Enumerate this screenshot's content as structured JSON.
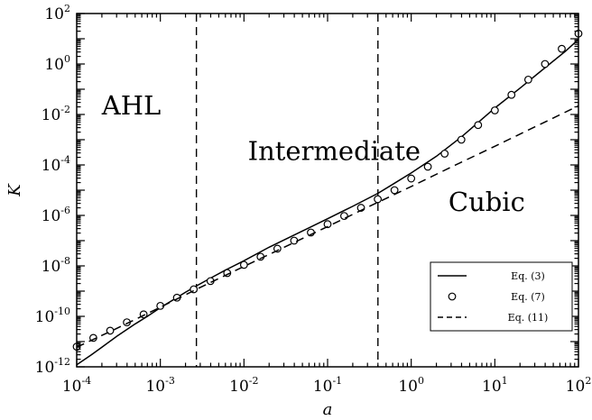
{
  "chart_data": {
    "type": "line",
    "xlabel": "a",
    "ylabel": "K",
    "x_scale": "log",
    "y_scale": "log",
    "xlim": [
      0.0001,
      100
    ],
    "ylim": [
      1e-12,
      100
    ],
    "x_ticks": [
      {
        "base": "10",
        "exp": "-4",
        "value": 0.0001
      },
      {
        "base": "10",
        "exp": "-3",
        "value": 0.001
      },
      {
        "base": "10",
        "exp": "-2",
        "value": 0.01
      },
      {
        "base": "10",
        "exp": "-1",
        "value": 0.1
      },
      {
        "base": "10",
        "exp": "0",
        "value": 1
      },
      {
        "base": "10",
        "exp": "1",
        "value": 10
      },
      {
        "base": "10",
        "exp": "2",
        "value": 100
      }
    ],
    "y_ticks": [
      {
        "base": "10",
        "exp": "-12",
        "value": 1e-12
      },
      {
        "base": "10",
        "exp": "-10",
        "value": 1e-10
      },
      {
        "base": "10",
        "exp": "-8",
        "value": 1e-08
      },
      {
        "base": "10",
        "exp": "-6",
        "value": 1e-06
      },
      {
        "base": "10",
        "exp": "-4",
        "value": 0.0001
      },
      {
        "base": "10",
        "exp": "-2",
        "value": 0.01
      },
      {
        "base": "10",
        "exp": "0",
        "value": 1
      },
      {
        "base": "10",
        "exp": "2",
        "value": 100
      }
    ],
    "grid": false,
    "legend_position": "bottom-right",
    "region_labels": [
      {
        "text": "AHL",
        "x": 0.00045,
        "y": 0.01
      },
      {
        "text": "Intermediate",
        "x": 0.12,
        "y": 0.00016
      },
      {
        "text": "Cubic",
        "x": 8,
        "y": 1.5e-06
      }
    ],
    "vertical_lines": [
      {
        "x": 0.0027,
        "style": "dashed"
      },
      {
        "x": 0.4,
        "style": "dashed"
      }
    ],
    "series": [
      {
        "name": "Eq. (3)",
        "style": "solid",
        "x": [
          0.0001,
          0.00015,
          0.0002,
          0.0003,
          0.0005,
          0.0007,
          0.001,
          0.0015,
          0.002,
          0.0027,
          0.004,
          0.006,
          0.01,
          0.02,
          0.05,
          0.1,
          0.2,
          0.4,
          0.6,
          1,
          2,
          4,
          10,
          20,
          40,
          70,
          100
        ],
        "y": [
          1.2e-12,
          3e-12,
          6e-12,
          1.6e-11,
          5e-11,
          1e-10,
          2.2e-10,
          5e-10,
          9e-10,
          1.6e-09,
          3.3e-09,
          6.8e-09,
          1.6e-08,
          5.5e-08,
          2.4e-07,
          7.4e-07,
          2.3e-06,
          7.5e-06,
          1.7e-05,
          4.8e-05,
          0.00022,
          0.0013,
          0.018,
          0.11,
          0.72,
          3.2,
          9.5
        ]
      },
      {
        "name": "Eq. (7)",
        "style": "circle",
        "x": [
          0.0001,
          0.000158,
          0.000251,
          0.000398,
          0.000631,
          0.001,
          0.00158,
          0.00251,
          0.00398,
          0.00631,
          0.01,
          0.0158,
          0.0251,
          0.0398,
          0.0631,
          0.1,
          0.158,
          0.251,
          0.398,
          0.631,
          1,
          1.58,
          2.51,
          3.98,
          6.31,
          10,
          15.8,
          25.1,
          39.8,
          63.1,
          100
        ],
        "y": [
          6.3e-12,
          1.4e-11,
          2.7e-11,
          5.8e-11,
          1.2e-10,
          2.6e-10,
          5.5e-10,
          1.18e-09,
          2.5e-09,
          5.2e-09,
          1.1e-08,
          2.3e-08,
          4.8e-08,
          1e-07,
          2.1e-07,
          4.5e-07,
          9.5e-07,
          2e-06,
          4.4e-06,
          1e-05,
          2.9e-05,
          8.5e-05,
          0.00028,
          0.001,
          0.0038,
          0.0145,
          0.06,
          0.24,
          1.0,
          4.0,
          16.0
        ]
      },
      {
        "name": "Eq. (11)",
        "style": "dashed",
        "x": [
          0.0001,
          0.0003,
          0.001,
          0.003,
          0.01,
          0.03,
          0.1,
          0.3,
          1,
          3,
          10,
          30,
          100
        ],
        "y": [
          6e-12,
          3.3e-11,
          2.3e-10,
          1.4e-09,
          9.5e-09,
          5.4e-08,
          3.6e-07,
          2.1e-06,
          1.4e-05,
          8.2e-05,
          0.00055,
          0.0032,
          0.022
        ]
      }
    ]
  }
}
